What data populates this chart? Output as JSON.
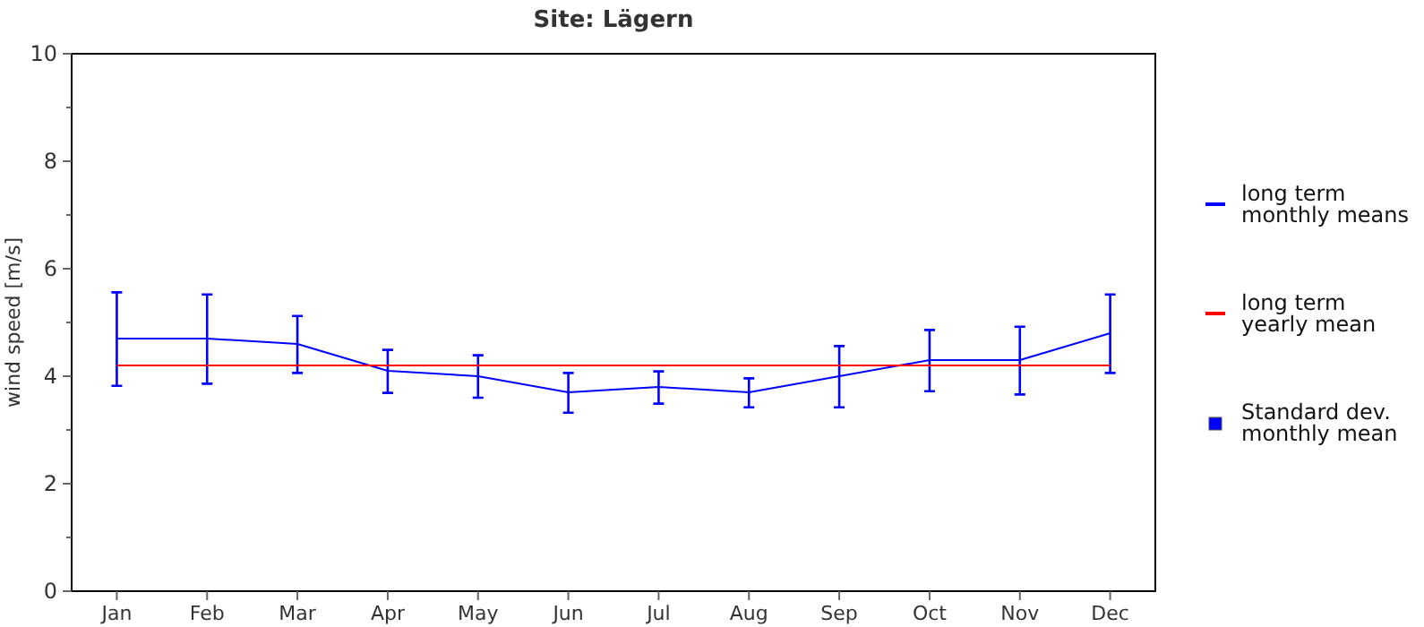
{
  "chart_data": {
    "type": "line",
    "title": "Site: Lägern",
    "ylabel": "wind speed [m/s]",
    "categories": [
      "Jan",
      "Feb",
      "Mar",
      "Apr",
      "May",
      "Jun",
      "Jul",
      "Aug",
      "Sep",
      "Oct",
      "Nov",
      "Dec"
    ],
    "series": [
      {
        "name": "long term\nmonthly means",
        "color": "#0000ff",
        "values": [
          4.7,
          4.7,
          4.6,
          4.1,
          4.0,
          3.7,
          3.8,
          3.7,
          4.0,
          4.3,
          4.3,
          4.8
        ],
        "errors": [
          [
            3.82,
            5.56
          ],
          [
            3.86,
            5.52
          ],
          [
            4.06,
            5.12
          ],
          [
            3.69,
            4.49
          ],
          [
            3.6,
            4.39
          ],
          [
            3.32,
            4.06
          ],
          [
            3.49,
            4.09
          ],
          [
            3.42,
            3.96
          ],
          [
            3.42,
            4.56
          ],
          [
            3.72,
            4.86
          ],
          [
            3.66,
            4.92
          ],
          [
            4.06,
            5.52
          ]
        ]
      },
      {
        "name": "long term\nyearly mean",
        "color": "#ff0000",
        "values": [
          4.2,
          4.2,
          4.2,
          4.2,
          4.2,
          4.2,
          4.2,
          4.2,
          4.2,
          4.2,
          4.2,
          4.2
        ]
      }
    ],
    "annotations": [
      "Standard dev.\nmonthly mean"
    ],
    "ylim": [
      0,
      10
    ],
    "yticks": [
      0,
      {
        "value": 1,
        "label": null
      },
      2,
      {
        "value": 3,
        "label": null
      },
      4,
      {
        "value": 5,
        "label": null
      },
      6,
      {
        "value": 7,
        "label": null
      },
      8,
      {
        "value": 9,
        "label": null
      },
      10
    ],
    "legend": "right",
    "grid": false
  }
}
